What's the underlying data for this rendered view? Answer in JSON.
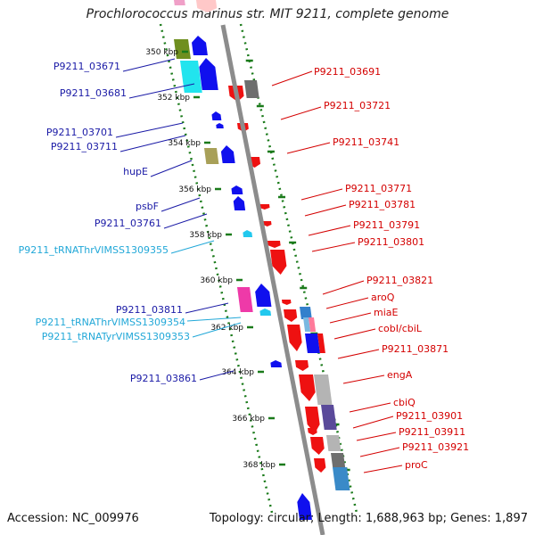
{
  "title": "Prochlorococcus marinus str. MIT 9211, complete genome",
  "footer": {
    "accession": "Accession: NC_009976",
    "topology": "Topology: circular; Length: 1,688,963 bp; Genes: 1,897"
  },
  "colors": {
    "forward_label": "#1a1aa6",
    "reverse_label": "#d40000",
    "rna_label": "#22a8d8",
    "backbone": "#8c8c8c",
    "track_dots": "#1a7a1a"
  },
  "ticks": [
    {
      "label": "350 kbp"
    },
    {
      "label": "352 kbp"
    },
    {
      "label": "354 kbp"
    },
    {
      "label": "356 kbp"
    },
    {
      "label": "358 kbp"
    },
    {
      "label": "360 kbp"
    },
    {
      "label": "362 kbp"
    },
    {
      "label": "364 kbp"
    },
    {
      "label": "366 kbp"
    },
    {
      "label": "368 kbp"
    }
  ],
  "left_labels": [
    {
      "text": "P9211_03671",
      "kind": "gene"
    },
    {
      "text": "P9211_03681",
      "kind": "gene"
    },
    {
      "text": "P9211_03701",
      "kind": "gene"
    },
    {
      "text": "P9211_03711",
      "kind": "gene"
    },
    {
      "text": "hupE",
      "kind": "gene"
    },
    {
      "text": "psbF",
      "kind": "gene"
    },
    {
      "text": "P9211_03761",
      "kind": "gene"
    },
    {
      "text": "P9211_tRNAThrVIMSS1309355",
      "kind": "rna"
    },
    {
      "text": "P9211_03811",
      "kind": "gene"
    },
    {
      "text": "P9211_tRNAThrVIMSS1309354",
      "kind": "rna"
    },
    {
      "text": "P9211_tRNATyrVIMSS1309353",
      "kind": "rna"
    },
    {
      "text": "P9211_03861",
      "kind": "gene"
    }
  ],
  "right_labels": [
    {
      "text": "P9211_03691"
    },
    {
      "text": "P9211_03721"
    },
    {
      "text": "P9211_03741"
    },
    {
      "text": "P9211_03771"
    },
    {
      "text": "P9211_03781"
    },
    {
      "text": "P9211_03791"
    },
    {
      "text": "P9211_03801"
    },
    {
      "text": "P9211_03821"
    },
    {
      "text": "aroQ"
    },
    {
      "text": "miaE"
    },
    {
      "text": "cobI/cbiL"
    },
    {
      "text": "P9211_03871"
    },
    {
      "text": "engA"
    },
    {
      "text": "cbiQ"
    },
    {
      "text": "P9211_03901"
    },
    {
      "text": "P9211_03911"
    },
    {
      "text": "P9211_03921"
    },
    {
      "text": "proC"
    }
  ]
}
